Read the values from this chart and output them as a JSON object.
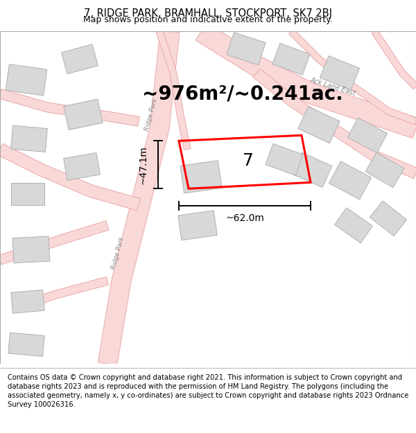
{
  "title": "7, RIDGE PARK, BRAMHALL, STOCKPORT, SK7 2BJ",
  "subtitle": "Map shows position and indicative extent of the property.",
  "footer": "Contains OS data © Crown copyright and database right 2021. This information is subject to Crown copyright and database rights 2023 and is reproduced with the permission of HM Land Registry. The polygons (including the associated geometry, namely x, y co-ordinates) are subject to Crown copyright and database rights 2023 Ordnance Survey 100026316.",
  "area_text": "~976m²/~0.241ac.",
  "width_label": "~62.0m",
  "height_label": "~47.1m",
  "plot_number": "7",
  "bg_color": "#ffffff",
  "road_fill": "#f9d8d8",
  "road_edge": "#e8a0a0",
  "building_fill": "#d8d8d8",
  "building_edge": "#b0b0b0",
  "property_color": "#ff0000",
  "dim_color": "#000000",
  "label_color": "#cccccc",
  "title_fontsize": 10.5,
  "subtitle_fontsize": 9,
  "footer_fontsize": 7.2,
  "area_fontsize": 20,
  "label_fontsize": 10,
  "plot_num_fontsize": 18
}
